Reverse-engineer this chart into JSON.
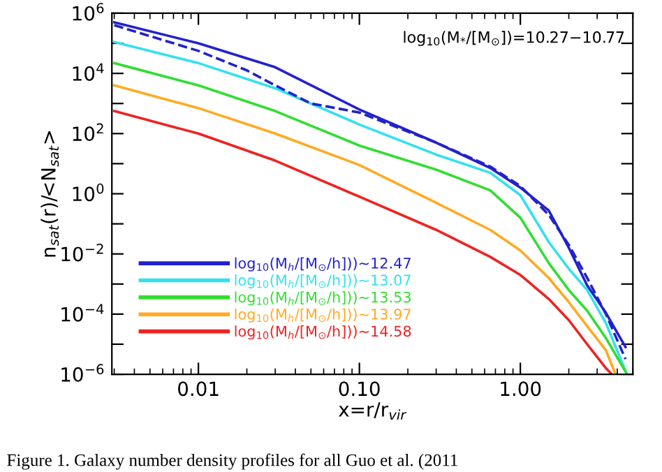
{
  "chart_data": {
    "type": "line",
    "xlabel": "x=r/r$_{vir}$",
    "ylabel": "n$_{sat}$(r)/<N$_{sat}$>",
    "log": "xy",
    "xlim": [
      0.0029,
      5.0
    ],
    "ylim": [
      1e-06,
      1000000.0
    ],
    "xticks": [
      {
        "value": 0.01,
        "label": "0.01"
      },
      {
        "value": 0.1,
        "label": "0.10"
      },
      {
        "value": 1,
        "label": "1.00"
      }
    ],
    "yticks": [
      {
        "value": 1e-06,
        "label": "10$^{−6}$"
      },
      {
        "value": 1e-05,
        "label": null
      },
      {
        "value": 0.0001,
        "label": "10$^{−4}$"
      },
      {
        "value": 0.001,
        "label": null
      },
      {
        "value": 0.01,
        "label": "10$^{−2}$"
      },
      {
        "value": 0.1,
        "label": null
      },
      {
        "value": 1,
        "label": "10$^{0}$"
      },
      {
        "value": 10,
        "label": null
      },
      {
        "value": 100,
        "label": "10$^{2}$"
      },
      {
        "value": 1000,
        "label": null
      },
      {
        "value": 10000.0,
        "label": "10$^{4}$"
      },
      {
        "value": 100000.0,
        "label": null
      },
      {
        "value": 1000000.0,
        "label": "10$^{6}$"
      }
    ],
    "grid": false,
    "legend": "bottom left",
    "marker": "none",
    "line_style": "solid",
    "series": [
      {
        "name": "log$_{10}$(M$_{h}$/[M$_{⊙}$/h]))~12.47",
        "color": "#2222cc",
        "x": [
          0.003,
          0.01,
          0.03,
          0.1,
          0.3,
          0.65,
          1.0,
          1.5,
          2.0,
          2.6,
          3.4,
          4.5
        ],
        "values": [
          500000.0,
          100000.0,
          16000.0,
          630,
          50,
          7.2,
          1.6,
          0.28,
          0.016,
          0.0009,
          0.00011,
          8e-06
        ]
      },
      {
        "name": "log$_{10}$(M$_{h}$/[M$_{⊙}$/h]))~13.07",
        "color": "#33e0f0",
        "x": [
          0.003,
          0.01,
          0.03,
          0.1,
          0.3,
          0.65,
          1.0,
          1.5,
          2.0,
          2.6,
          3.4,
          4.5
        ],
        "values": [
          110000.0,
          22000.0,
          3200,
          200,
          20,
          5,
          0.9,
          0.025,
          0.0032,
          0.00063,
          5e-05,
          1.3e-06
        ]
      },
      {
        "name": "log$_{10}$(M$_{h}$/[M$_{⊙}$/h]))~13.53",
        "color": "#33dd33",
        "x": [
          0.003,
          0.01,
          0.03,
          0.1,
          0.3,
          0.65,
          1.0,
          1.5,
          2.0,
          2.6,
          3.4,
          4.6
        ],
        "values": [
          22000.0,
          4000,
          560,
          40,
          6.3,
          1.3,
          0.16,
          0.005,
          0.00063,
          0.00013,
          1.6e-05,
          1e-06
        ]
      },
      {
        "name": "log$_{10}$(M$_{h}$/[M$_{⊙}$/h]))~13.97",
        "color": "#ffaa22",
        "x": [
          0.003,
          0.01,
          0.03,
          0.1,
          0.3,
          0.65,
          1.0,
          1.5,
          2.0,
          2.6,
          3.4,
          3.9
        ],
        "values": [
          4000,
          700,
          100,
          9,
          0.5,
          0.063,
          0.013,
          0.0016,
          0.00025,
          4e-05,
          6.3e-06,
          1e-06
        ]
      },
      {
        "name": "log$_{10}$(M$_{h}$/[M$_{⊙}$/h]))~14.58",
        "color": "#ee2222",
        "x": [
          0.003,
          0.01,
          0.03,
          0.1,
          0.3,
          0.65,
          1.0,
          1.5,
          2.0,
          2.6,
          3.4,
          3.7
        ],
        "values": [
          560,
          100,
          12.6,
          0.8,
          0.063,
          0.008,
          0.002,
          0.00032,
          6.3e-05,
          1e-05,
          1.6e-06,
          1e-06
        ]
      },
      {
        "color": "#2222cc",
        "line_style": "dashed",
        "x": [
          0.003,
          0.01,
          0.02,
          0.03,
          0.05,
          0.1,
          0.3,
          0.65,
          1.0,
          1.5,
          2.0,
          2.6,
          3.4,
          4.5
        ],
        "values": [
          400000.0,
          56000.0,
          12600.0,
          4000.0,
          1000.0,
          500,
          50,
          8,
          1.8,
          0.2,
          0.02,
          0.0016,
          0.0001,
          3.2e-06
        ]
      }
    ],
    "annotations": [
      "log$_{10}$(M$_{*}$/[M$_{⊙}$])=10.27−10.77",
      "Figure 1. Galaxy number density profiles for all Guo et al. (2011"
    ]
  }
}
